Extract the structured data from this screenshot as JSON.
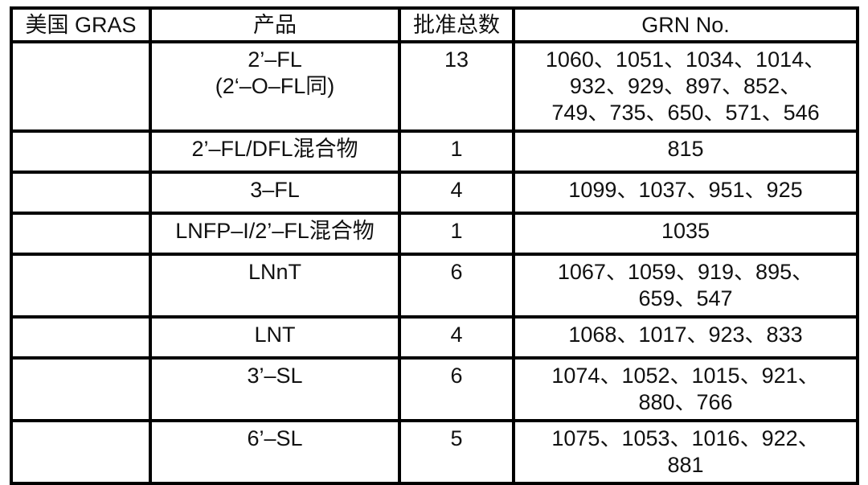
{
  "page": {
    "background_color": "#ffffff",
    "border_color": "#000000",
    "text_color": "#111111"
  },
  "table": {
    "name": "US GRAS HMO approvals table",
    "headers": [
      "美国 GRAS",
      "产品",
      "批准总数",
      "GRN No."
    ],
    "rows": [
      {
        "region": "",
        "product": "2’–FL\n(2‘–O–FL同)",
        "count": "13",
        "grn": "1060、1051、1034、1014、\n932、929、897、852、\n749、735、650、571、546"
      },
      {
        "region": "",
        "product": "2’–FL/DFL混合物",
        "count": "1",
        "grn": "815"
      },
      {
        "region": "",
        "product": "3–FL",
        "count": "4",
        "grn": "1099、1037、951、925"
      },
      {
        "region": "",
        "product": "LNFP–I/2’–FL混合物",
        "count": "1",
        "grn": "1035"
      },
      {
        "region": "",
        "product": "LNnT",
        "count": "6",
        "grn": "1067、1059、919、895、\n659、547"
      },
      {
        "region": "",
        "product": "LNT",
        "count": "4",
        "grn": "1068、1017、923、833"
      },
      {
        "region": "",
        "product": "3’–SL",
        "count": "6",
        "grn": "1074、1052、1015、921、\n880、766"
      },
      {
        "region": "",
        "product": "6’–SL",
        "count": "5",
        "grn": "1075、1053、1016、922、\n881"
      }
    ]
  }
}
